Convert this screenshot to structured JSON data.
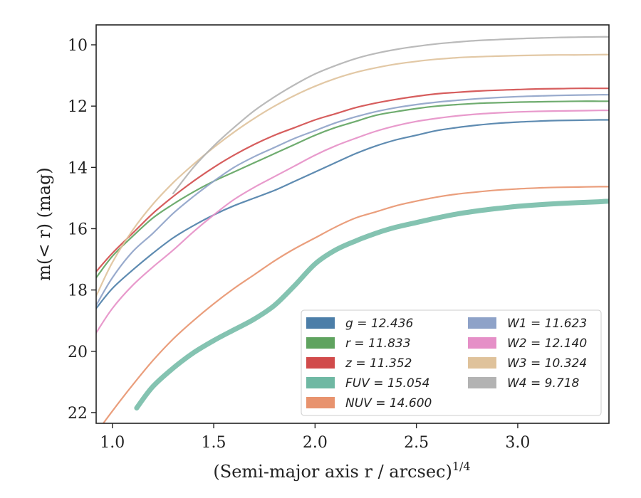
{
  "chart_data": {
    "type": "line",
    "xlabel": "(Semi-major axis r / arcsec)",
    "xlabel_sup": "1/4",
    "ylabel": "m(< r) (mag)",
    "xlim": [
      0.92,
      3.45
    ],
    "ylim": [
      22.35,
      9.35
    ],
    "y_inverted": true,
    "x_ticks": [
      1.0,
      1.5,
      2.0,
      2.5,
      3.0
    ],
    "x_tick_labels": [
      "1.0",
      "1.5",
      "2.0",
      "2.5",
      "3.0"
    ],
    "y_ticks": [
      10,
      12,
      14,
      16,
      18,
      20,
      22
    ],
    "y_tick_labels": [
      "10",
      "12",
      "14",
      "16",
      "18",
      "20",
      "22"
    ],
    "grid": false,
    "legend_position": "bottom-right",
    "legend_columns": 2,
    "series": [
      {
        "name": "g = 12.436",
        "color": "#4c7ea8",
        "x": [
          0.92,
          1.0,
          1.1,
          1.2,
          1.3,
          1.4,
          1.5,
          1.6,
          1.7,
          1.8,
          1.9,
          2.0,
          2.1,
          2.2,
          2.3,
          2.4,
          2.5,
          2.6,
          2.7,
          2.8,
          2.9,
          3.0,
          3.1,
          3.2,
          3.3,
          3.4,
          3.45
        ],
        "y": [
          18.6,
          17.95,
          17.35,
          16.8,
          16.3,
          15.9,
          15.55,
          15.25,
          15.0,
          14.75,
          14.45,
          14.15,
          13.85,
          13.55,
          13.3,
          13.1,
          12.95,
          12.8,
          12.7,
          12.62,
          12.56,
          12.52,
          12.49,
          12.47,
          12.46,
          12.45,
          12.45
        ]
      },
      {
        "name": "r = 11.833",
        "color": "#5fa35f",
        "x": [
          0.92,
          1.0,
          1.1,
          1.2,
          1.3,
          1.4,
          1.5,
          1.6,
          1.7,
          1.8,
          1.9,
          2.0,
          2.1,
          2.2,
          2.3,
          2.4,
          2.5,
          2.6,
          2.7,
          2.8,
          2.9,
          3.0,
          3.1,
          3.2,
          3.3,
          3.4,
          3.45
        ],
        "y": [
          17.6,
          16.9,
          16.25,
          15.65,
          15.2,
          14.8,
          14.45,
          14.15,
          13.85,
          13.55,
          13.25,
          12.95,
          12.7,
          12.5,
          12.3,
          12.18,
          12.08,
          12.0,
          11.95,
          11.91,
          11.89,
          11.87,
          11.86,
          11.85,
          11.84,
          11.84,
          11.84
        ]
      },
      {
        "name": "z = 11.352",
        "color": "#d14b4b",
        "x": [
          0.92,
          1.0,
          1.1,
          1.2,
          1.3,
          1.4,
          1.5,
          1.6,
          1.7,
          1.8,
          1.9,
          2.0,
          2.1,
          2.2,
          2.3,
          2.4,
          2.5,
          2.6,
          2.7,
          2.8,
          2.9,
          3.0,
          3.1,
          3.2,
          3.3,
          3.4,
          3.45
        ],
        "y": [
          17.4,
          16.8,
          16.15,
          15.5,
          14.95,
          14.45,
          14.0,
          13.6,
          13.25,
          12.95,
          12.7,
          12.45,
          12.25,
          12.05,
          11.9,
          11.78,
          11.68,
          11.6,
          11.55,
          11.51,
          11.48,
          11.46,
          11.44,
          11.43,
          11.42,
          11.42,
          11.42
        ]
      },
      {
        "name": "FUV = 15.054",
        "color": "#6fb8a3",
        "x": [
          1.12,
          1.2,
          1.3,
          1.4,
          1.5,
          1.6,
          1.7,
          1.8,
          1.9,
          2.0,
          2.1,
          2.2,
          2.3,
          2.4,
          2.5,
          2.6,
          2.7,
          2.8,
          2.9,
          3.0,
          3.1,
          3.2,
          3.3,
          3.4,
          3.45
        ],
        "y": [
          21.85,
          21.15,
          20.55,
          20.05,
          19.65,
          19.3,
          18.95,
          18.5,
          17.85,
          17.15,
          16.7,
          16.4,
          16.15,
          15.95,
          15.8,
          15.65,
          15.52,
          15.42,
          15.34,
          15.27,
          15.22,
          15.18,
          15.15,
          15.12,
          15.1
        ]
      },
      {
        "name": "NUV = 14.600",
        "color": "#e8936e",
        "x": [
          0.95,
          1.0,
          1.1,
          1.2,
          1.3,
          1.4,
          1.5,
          1.6,
          1.7,
          1.8,
          1.9,
          2.0,
          2.1,
          2.2,
          2.3,
          2.4,
          2.5,
          2.6,
          2.7,
          2.8,
          2.9,
          3.0,
          3.1,
          3.2,
          3.3,
          3.4,
          3.45
        ],
        "y": [
          22.4,
          21.95,
          21.1,
          20.3,
          19.6,
          19.0,
          18.45,
          17.95,
          17.5,
          17.05,
          16.65,
          16.3,
          15.95,
          15.65,
          15.45,
          15.25,
          15.1,
          14.97,
          14.87,
          14.8,
          14.74,
          14.7,
          14.67,
          14.65,
          14.64,
          14.63,
          14.63
        ]
      },
      {
        "name": "W1 = 11.623",
        "color": "#8ea2c8",
        "x": [
          0.92,
          1.0,
          1.1,
          1.2,
          1.3,
          1.4,
          1.5,
          1.6,
          1.7,
          1.8,
          1.9,
          2.0,
          2.1,
          2.2,
          2.3,
          2.4,
          2.5,
          2.6,
          2.7,
          2.8,
          2.9,
          3.0,
          3.1,
          3.2,
          3.3,
          3.4,
          3.45
        ],
        "y": [
          18.5,
          17.6,
          16.75,
          16.15,
          15.5,
          14.95,
          14.45,
          14.0,
          13.65,
          13.35,
          13.05,
          12.8,
          12.55,
          12.35,
          12.18,
          12.05,
          11.95,
          11.87,
          11.81,
          11.76,
          11.72,
          11.69,
          11.67,
          11.65,
          11.64,
          11.63,
          11.63
        ]
      },
      {
        "name": "W2 = 12.140",
        "color": "#e58fc7",
        "x": [
          0.92,
          1.0,
          1.1,
          1.2,
          1.3,
          1.4,
          1.5,
          1.6,
          1.7,
          1.8,
          1.9,
          2.0,
          2.1,
          2.2,
          2.3,
          2.4,
          2.5,
          2.6,
          2.7,
          2.8,
          2.9,
          3.0,
          3.1,
          3.2,
          3.3,
          3.4,
          3.45
        ],
        "y": [
          19.4,
          18.6,
          17.85,
          17.25,
          16.7,
          16.1,
          15.55,
          15.05,
          14.65,
          14.3,
          13.95,
          13.6,
          13.3,
          13.05,
          12.82,
          12.64,
          12.5,
          12.4,
          12.32,
          12.26,
          12.22,
          12.19,
          12.17,
          12.16,
          12.15,
          12.14,
          12.14
        ]
      },
      {
        "name": "W3 = 10.324",
        "color": "#dfc29b",
        "x": [
          0.92,
          1.0,
          1.1,
          1.2,
          1.3,
          1.4,
          1.5,
          1.6,
          1.7,
          1.8,
          1.9,
          2.0,
          2.1,
          2.2,
          2.3,
          2.4,
          2.5,
          2.6,
          2.7,
          2.8,
          2.9,
          3.0,
          3.1,
          3.2,
          3.3,
          3.4,
          3.45
        ],
        "y": [
          18.2,
          17.1,
          16.05,
          15.2,
          14.5,
          13.9,
          13.35,
          12.85,
          12.4,
          12.0,
          11.65,
          11.35,
          11.1,
          10.9,
          10.75,
          10.63,
          10.54,
          10.47,
          10.42,
          10.39,
          10.37,
          10.35,
          10.34,
          10.33,
          10.33,
          10.32,
          10.32
        ]
      },
      {
        "name": "W4 = 9.718",
        "color": "#b3b3b3",
        "x": [
          1.3,
          1.4,
          1.5,
          1.6,
          1.7,
          1.8,
          1.9,
          2.0,
          2.1,
          2.2,
          2.3,
          2.4,
          2.5,
          2.6,
          2.7,
          2.8,
          2.9,
          3.0,
          3.1,
          3.2,
          3.3,
          3.4,
          3.45
        ],
        "y": [
          14.85,
          14.0,
          13.3,
          12.7,
          12.15,
          11.7,
          11.3,
          10.95,
          10.68,
          10.45,
          10.28,
          10.15,
          10.05,
          9.97,
          9.91,
          9.86,
          9.83,
          9.8,
          9.78,
          9.76,
          9.75,
          9.74,
          9.74
        ]
      }
    ]
  }
}
